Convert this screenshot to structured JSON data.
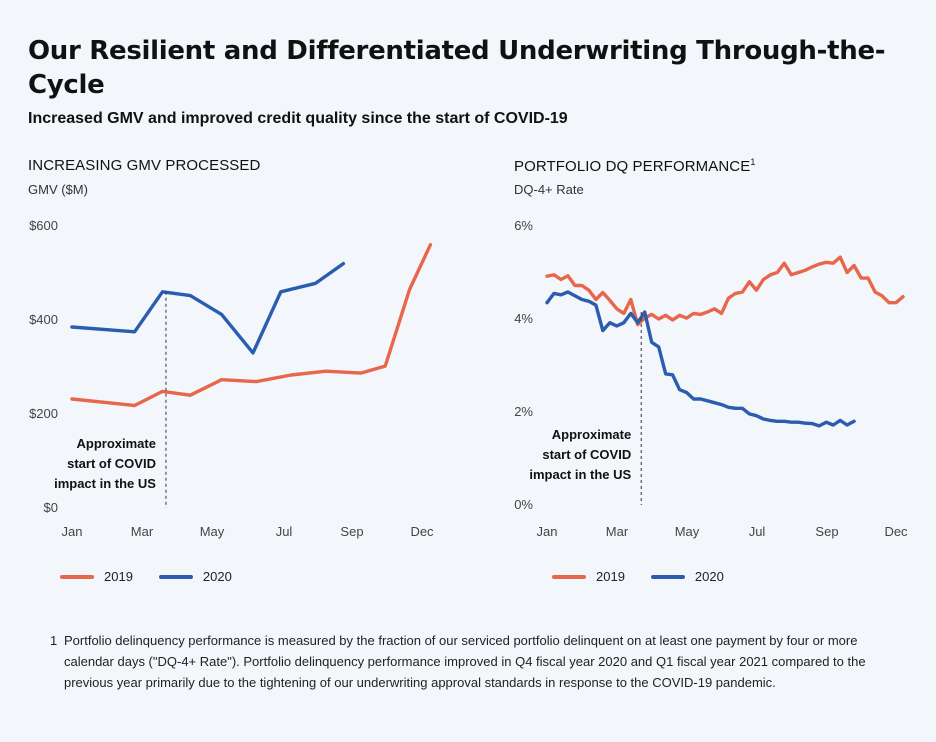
{
  "header": {
    "title": "Our Resilient and Differentiated Underwriting Through-the-Cycle",
    "subtitle": "Increased GMV and improved credit quality since the start of COVID-19"
  },
  "colors": {
    "c2019": "#e8664c",
    "c2020": "#2a5db0",
    "dash": "#333333"
  },
  "chart_data": [
    {
      "type": "line",
      "title": "INCREASING GMV PROCESSED",
      "ylabel": "GMV ($M)",
      "xlabel": "",
      "x_labels": [
        "Jan",
        "Mar",
        "May",
        "Jul",
        "Sep",
        "Dec"
      ],
      "y_tick_labels": [
        "$0",
        "$200",
        "$400",
        "$600"
      ],
      "ylim": [
        0,
        600
      ],
      "xlim": [
        1,
        11
      ],
      "series": [
        {
          "name": "2019",
          "color": "#e8664c",
          "x": [
            1,
            2.8,
            3.6,
            4.4,
            5.3,
            6.3,
            7.3,
            8.3,
            9.3,
            10,
            10.7,
            11.3
          ],
          "y": [
            232,
            218,
            248,
            240,
            273,
            269,
            283,
            291,
            287,
            302,
            465,
            560
          ]
        },
        {
          "name": "2020",
          "color": "#2a5db0",
          "x": [
            1,
            2.8,
            3.6,
            4.4,
            5.3,
            6.2,
            7,
            8,
            8.8
          ],
          "y": [
            385,
            375,
            460,
            452,
            412,
            330,
            460,
            478,
            520
          ]
        }
      ],
      "annotation": {
        "x": 3.7,
        "lines": [
          "Approximate",
          "start of COVID",
          "impact in the US"
        ]
      }
    },
    {
      "type": "line",
      "title": "PORTFOLIO DQ PERFORMANCE",
      "title_sup": "1",
      "ylabel": "DQ-4+ Rate",
      "xlabel": "",
      "x_labels": [
        "Jan",
        "Mar",
        "May",
        "Jul",
        "Sep",
        "Dec"
      ],
      "y_tick_labels": [
        "0%",
        "2%",
        "4%",
        "6%"
      ],
      "ylim": [
        0,
        6
      ],
      "xlim": [
        1,
        11
      ],
      "series": [
        {
          "name": "2019",
          "color": "#e8664c",
          "x": [
            1,
            1.2,
            1.4,
            1.6,
            1.8,
            2,
            2.2,
            2.4,
            2.6,
            2.8,
            3,
            3.2,
            3.4,
            3.6,
            3.8,
            4,
            4.2,
            4.4,
            4.6,
            4.8,
            5,
            5.2,
            5.4,
            5.6,
            5.8,
            6,
            6.2,
            6.4,
            6.6,
            6.8,
            7,
            7.2,
            7.4,
            7.6,
            7.8,
            8,
            8.2,
            8.4,
            8.6,
            8.8,
            9,
            9.2,
            9.4,
            9.6,
            9.8,
            10,
            10.2,
            10.4,
            10.6,
            10.8,
            11,
            11.2
          ],
          "y": [
            4.92,
            4.95,
            4.85,
            4.93,
            4.72,
            4.72,
            4.62,
            4.42,
            4.57,
            4.4,
            4.22,
            4.12,
            4.42,
            3.88,
            4.02,
            4.1,
            4.0,
            4.08,
            3.98,
            4.08,
            4.02,
            4.12,
            4.1,
            4.15,
            4.22,
            4.12,
            4.45,
            4.55,
            4.58,
            4.8,
            4.62,
            4.85,
            4.95,
            5.0,
            5.2,
            4.95,
            5.0,
            5.05,
            5.12,
            5.18,
            5.22,
            5.2,
            5.33,
            5.0,
            5.15,
            4.88,
            4.88,
            4.58,
            4.5,
            4.35,
            4.35,
            4.48
          ]
        },
        {
          "name": "2020",
          "color": "#2a5db0",
          "x": [
            1,
            1.2,
            1.4,
            1.6,
            1.8,
            2,
            2.2,
            2.4,
            2.6,
            2.8,
            3,
            3.2,
            3.4,
            3.6,
            3.8,
            4,
            4.2,
            4.4,
            4.6,
            4.8,
            5,
            5.2,
            5.4,
            5.6,
            5.8,
            6,
            6.2,
            6.4,
            6.6,
            6.8,
            7,
            7.2,
            7.4,
            7.6,
            7.8,
            8,
            8.2,
            8.4,
            8.6,
            8.8,
            9,
            9.2,
            9.4,
            9.6,
            9.8
          ],
          "y": [
            4.35,
            4.55,
            4.52,
            4.58,
            4.5,
            4.42,
            4.38,
            4.3,
            3.75,
            3.92,
            3.85,
            3.92,
            4.12,
            3.92,
            4.15,
            3.5,
            3.4,
            2.82,
            2.8,
            2.48,
            2.42,
            2.28,
            2.28,
            2.24,
            2.2,
            2.16,
            2.1,
            2.08,
            2.08,
            1.96,
            1.92,
            1.85,
            1.82,
            1.8,
            1.8,
            1.78,
            1.78,
            1.76,
            1.75,
            1.7,
            1.78,
            1.72,
            1.82,
            1.72,
            1.8
          ]
        }
      ],
      "annotation": {
        "x": 3.7,
        "lines": [
          "Approximate",
          "start of COVID",
          "impact in the US"
        ]
      }
    }
  ],
  "legend": [
    {
      "label": "2019",
      "color": "#e8664c"
    },
    {
      "label": "2020",
      "color": "#2a5db0"
    }
  ],
  "footnote": {
    "number": "1",
    "text": "Portfolio delinquency performance is measured by the fraction of our serviced portfolio delinquent on at least one payment by four or more calendar days (\"DQ-4+ Rate\"). Portfolio delinquency performance improved in Q4 fiscal year 2020 and Q1 fiscal year 2021 compared to the previous year primarily due to the tightening of our underwriting approval standards in response to the COVID-19 pandemic."
  }
}
